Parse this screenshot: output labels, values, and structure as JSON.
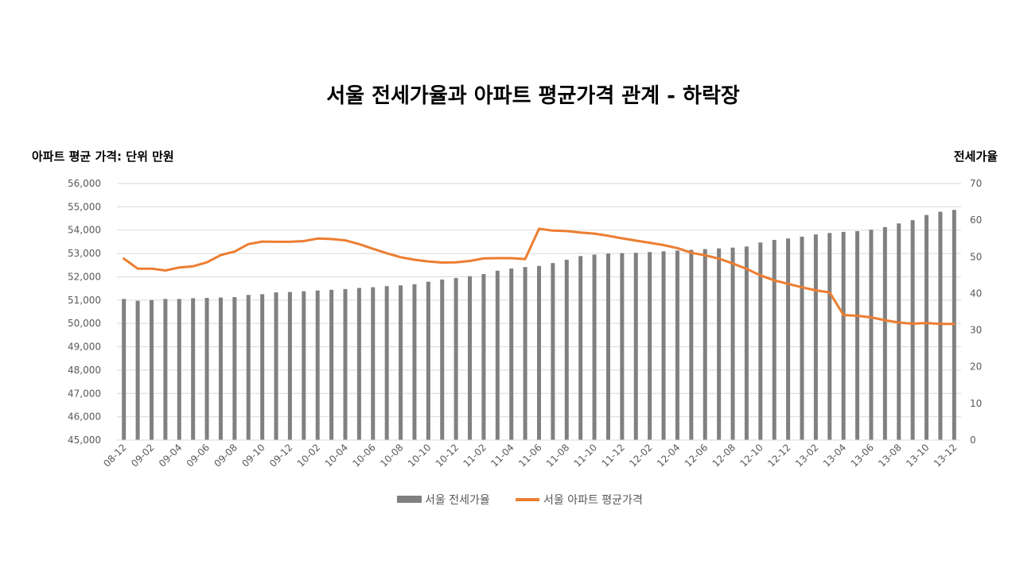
{
  "chart_data": {
    "type": "bar+line",
    "title": "서울 전세가율과 아파트 평균가격 관계 - 하락장",
    "ylabel_left": "아파트 평균 가격: 단위 만원",
    "ylabel_right": "전세가율",
    "ylim_left": [
      45000,
      56000
    ],
    "ylim_right": [
      0,
      70
    ],
    "yticks_left": [
      "45,000",
      "46,000",
      "47,000",
      "48,000",
      "49,000",
      "50,000",
      "51,000",
      "52,000",
      "53,000",
      "54,000",
      "55,000",
      "56,000"
    ],
    "yticks_right": [
      "0",
      "10",
      "20",
      "30",
      "40",
      "50",
      "60",
      "70"
    ],
    "grid": true,
    "legend_position": "bottom",
    "categories": [
      "08-12",
      "09-01",
      "09-02",
      "09-03",
      "09-04",
      "09-05",
      "09-06",
      "09-07",
      "09-08",
      "09-09",
      "09-10",
      "09-11",
      "09-12",
      "10-01",
      "10-02",
      "10-03",
      "10-04",
      "10-05",
      "10-06",
      "10-07",
      "10-08",
      "10-09",
      "10-10",
      "10-11",
      "10-12",
      "11-01",
      "11-02",
      "11-03",
      "11-04",
      "11-05",
      "11-06",
      "11-07",
      "11-08",
      "11-09",
      "11-10",
      "11-11",
      "11-12",
      "12-01",
      "12-02",
      "12-03",
      "12-04",
      "12-05",
      "12-06",
      "12-07",
      "12-08",
      "12-09",
      "12-10",
      "12-11",
      "12-12",
      "13-01",
      "13-02",
      "13-03",
      "13-04",
      "13-05",
      "13-06",
      "13-07",
      "13-08",
      "13-09",
      "13-10",
      "13-11",
      "13-12"
    ],
    "x_tick_labels": [
      "08-12",
      "09-02",
      "09-04",
      "09-06",
      "09-08",
      "09-10",
      "09-12",
      "10-02",
      "10-04",
      "10-06",
      "10-08",
      "10-10",
      "10-12",
      "11-02",
      "11-04",
      "11-06",
      "11-08",
      "11-10",
      "11-12",
      "12-02",
      "12-04",
      "12-06",
      "12-08",
      "12-10",
      "12-12",
      "13-02",
      "13-04",
      "13-06",
      "13-08",
      "13-10",
      "13-12"
    ],
    "series": [
      {
        "name": "서울 전세가율",
        "type": "bar",
        "axis": "right",
        "color": "#808080",
        "values": [
          38.5,
          38,
          38.2,
          38.5,
          38.5,
          38.7,
          38.8,
          38.9,
          39,
          39.6,
          39.8,
          40.3,
          40.4,
          40.6,
          40.8,
          41,
          41.2,
          41.5,
          41.7,
          42,
          42.2,
          42.5,
          43.2,
          43.8,
          44.2,
          44.7,
          45.3,
          46.2,
          46.8,
          47.2,
          47.5,
          48.3,
          49.2,
          50.2,
          50.6,
          50.9,
          51,
          51.1,
          51.3,
          51.5,
          51.7,
          51.9,
          52.1,
          52.3,
          52.5,
          52.8,
          53.9,
          54.6,
          55,
          55.5,
          56.1,
          56.5,
          56.8,
          57,
          57.4,
          58.1,
          59.1,
          60,
          61.4,
          62.3,
          62.8
        ]
      },
      {
        "name": "서울 아파트 평균가격",
        "type": "line",
        "axis": "left",
        "color": "#ED7D31",
        "values": [
          52780,
          52350,
          52350,
          52270,
          52400,
          52450,
          52620,
          52930,
          53080,
          53400,
          53510,
          53500,
          53500,
          53530,
          53640,
          53620,
          53560,
          53400,
          53200,
          53010,
          52840,
          52730,
          52660,
          52610,
          52620,
          52680,
          52790,
          52800,
          52800,
          52760,
          54060,
          53980,
          53960,
          53900,
          53850,
          53760,
          53650,
          53550,
          53460,
          53360,
          53230,
          53030,
          52920,
          52780,
          52570,
          52340,
          52060,
          51850,
          51700,
          51550,
          51420,
          51330,
          50360,
          50330,
          50260,
          50140,
          50040,
          49990,
          50020,
          49980,
          49980
        ]
      }
    ]
  }
}
